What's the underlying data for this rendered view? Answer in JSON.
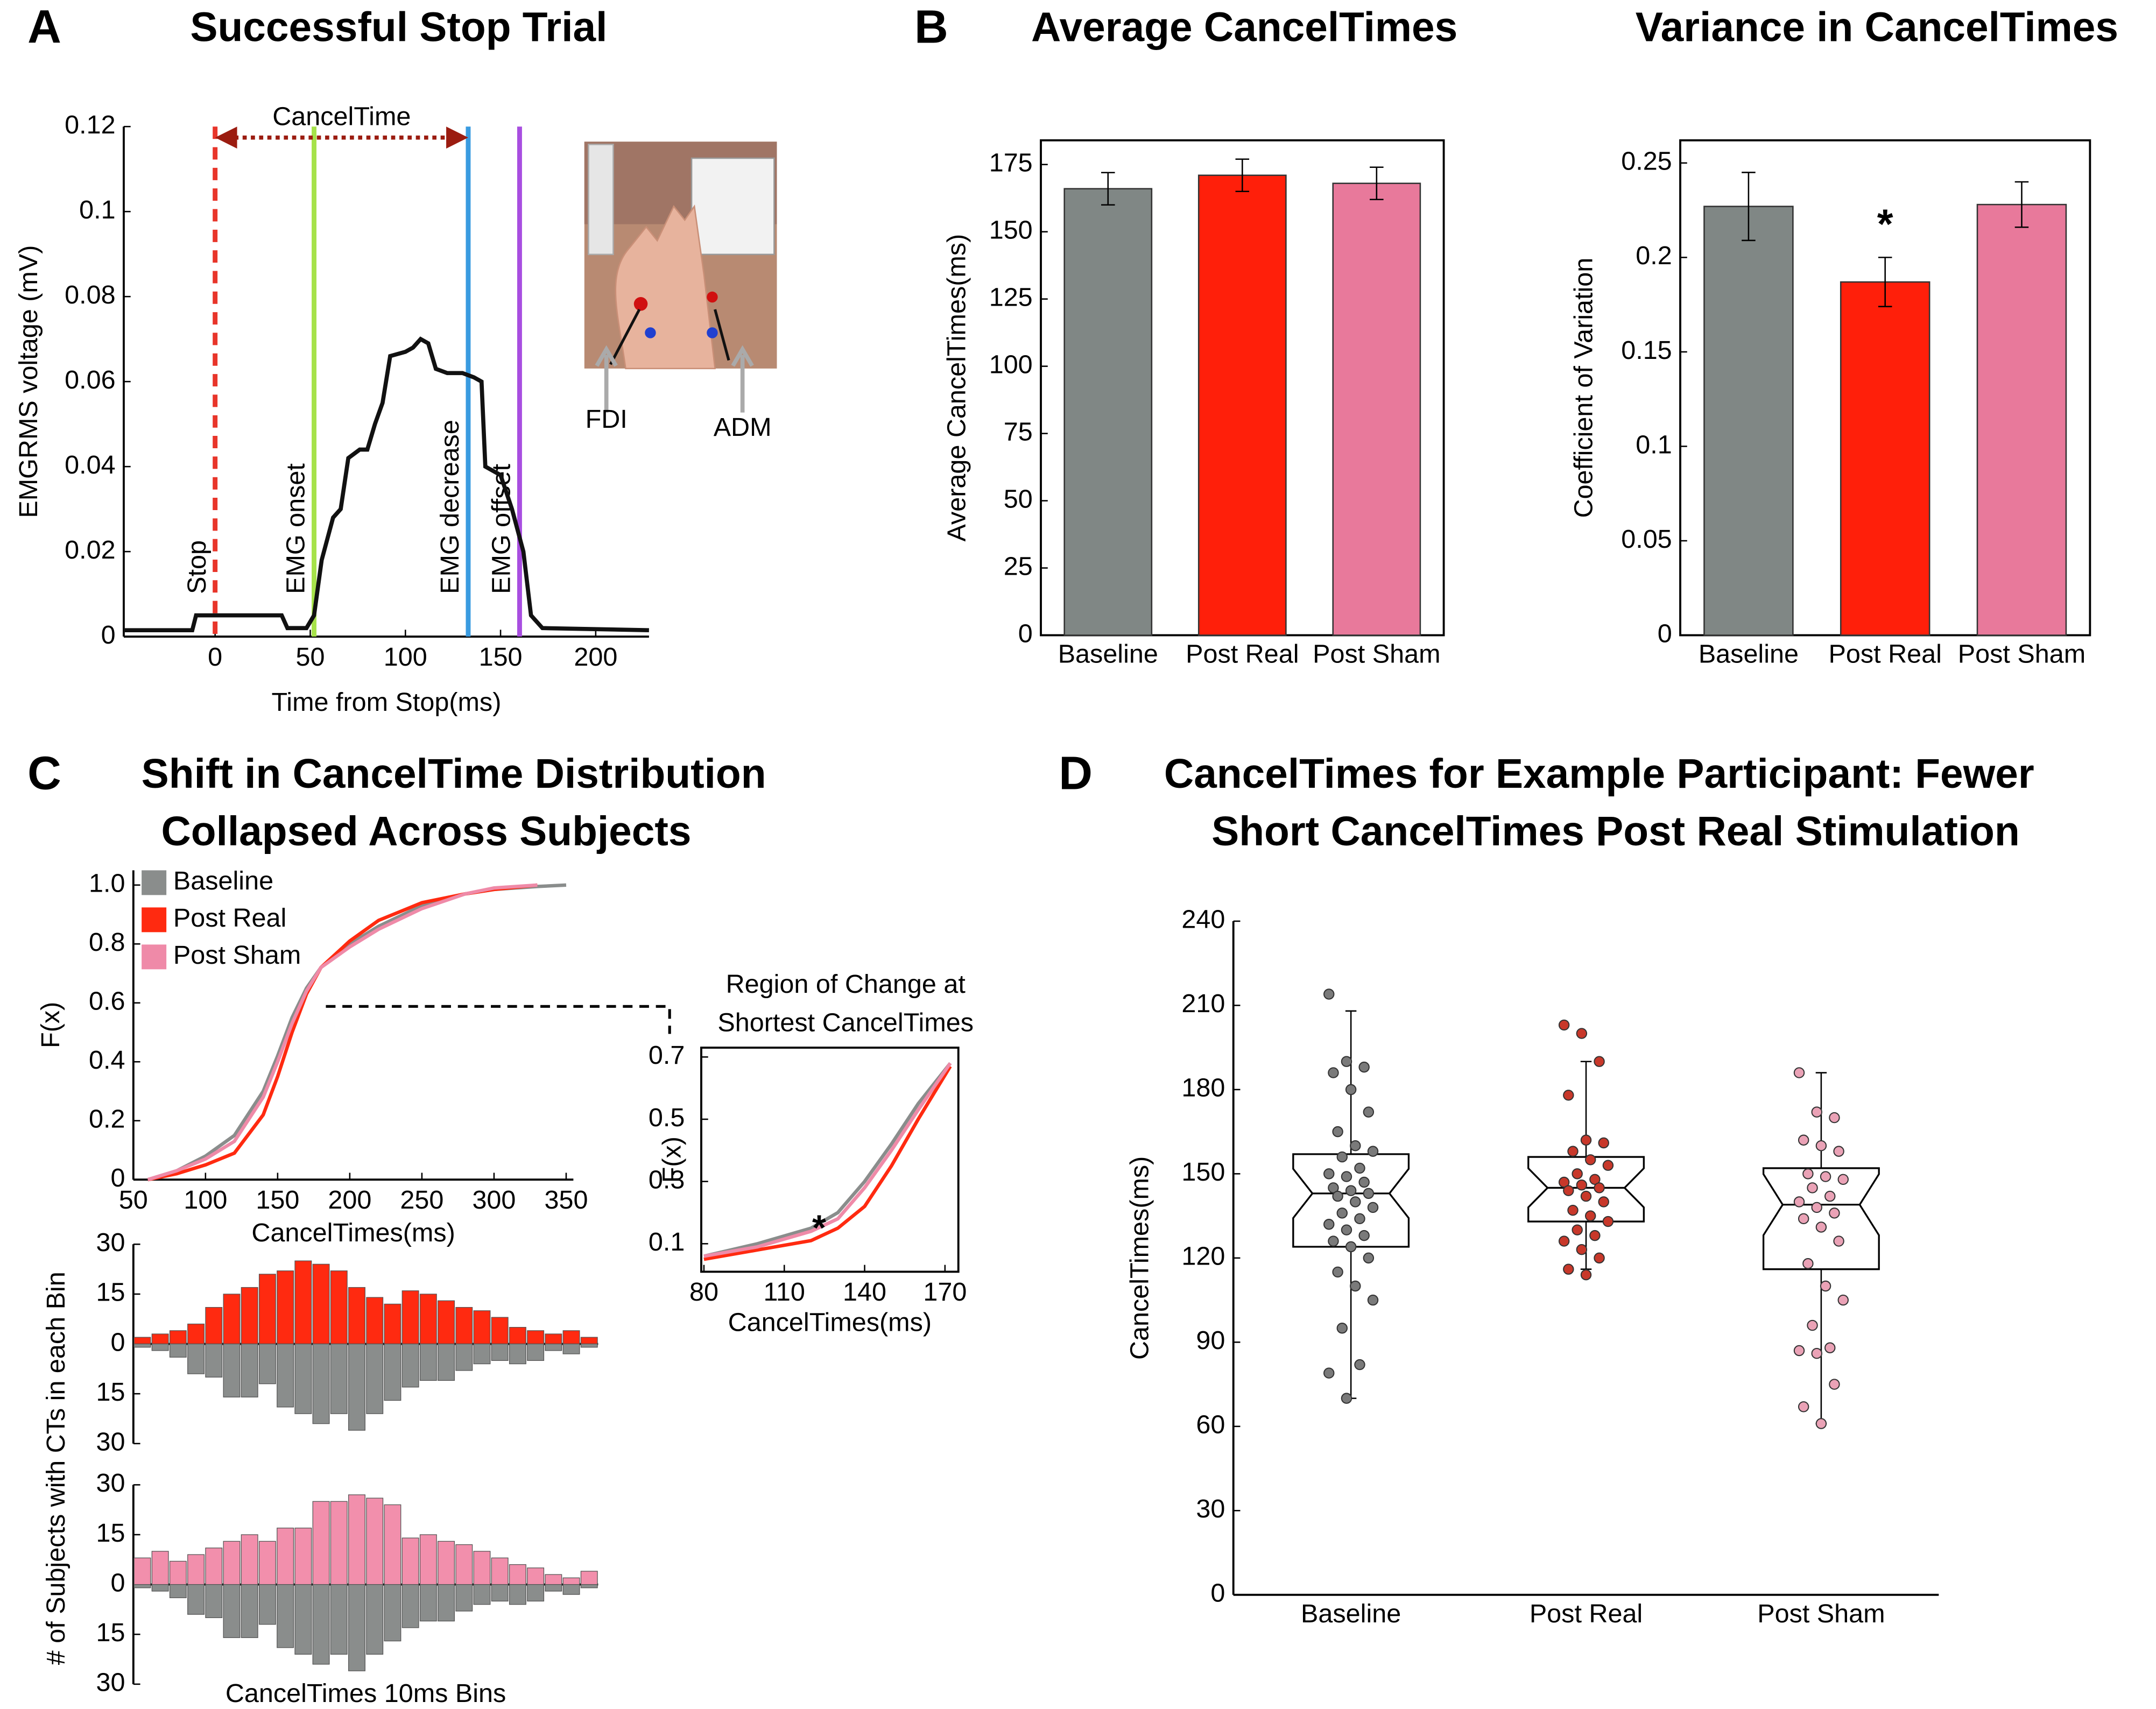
{
  "chart_data": [
    {
      "type": "line",
      "panel": "A",
      "title": "Successful Stop Trial",
      "xlabel": "Time from Stop(ms)",
      "ylabel": "EMGRMS voltage (mV)",
      "x": [
        -48,
        -12,
        -10,
        35,
        38,
        48,
        52,
        56,
        62,
        66,
        70,
        76,
        80,
        84,
        88,
        92,
        100,
        104,
        108,
        112,
        116,
        122,
        130,
        136,
        140,
        142,
        150,
        156,
        162,
        166,
        172,
        228
      ],
      "series": [
        {
          "color": "#111111",
          "values": [
            0.0015,
            0.0015,
            0.005,
            0.005,
            0.002,
            0.002,
            0.005,
            0.018,
            0.028,
            0.03,
            0.042,
            0.044,
            0.044,
            0.05,
            0.055,
            0.066,
            0.067,
            0.068,
            0.07,
            0.069,
            0.063,
            0.062,
            0.062,
            0.061,
            0.06,
            0.04,
            0.038,
            0.03,
            0.02,
            0.005,
            0.002,
            0.0015
          ]
        }
      ],
      "xlim": [
        -48,
        228
      ],
      "xticks": [
        0,
        50,
        100,
        150,
        200
      ],
      "ylim": [
        0,
        0.12
      ],
      "yticks": [
        0,
        0.02,
        0.04,
        0.06,
        0.08,
        0.1,
        0.12
      ],
      "markers": [
        {
          "label": "Stop",
          "x": 0,
          "color": "#e8352a",
          "dashed": true
        },
        {
          "label": "EMG onset",
          "x": 52,
          "color": "#a6e24a"
        },
        {
          "label": "EMG decrease",
          "x": 133,
          "color": "#3a9be0"
        },
        {
          "label": "EMG offset",
          "x": 160,
          "color": "#a84ee0"
        }
      ],
      "span": {
        "label": "CancelTime",
        "from": 0,
        "to": 133,
        "color": "#9b1c10"
      },
      "inset_labels": [
        "FDI",
        "ADM"
      ]
    },
    {
      "type": "bar",
      "panel": "B",
      "title": "Average CancelTimes",
      "ylabel": "Average CancelTimes(ms)",
      "categories": [
        "Baseline",
        "Post Real",
        "Post Sham"
      ],
      "values": [
        166,
        171,
        168
      ],
      "errors": [
        6,
        6,
        6
      ],
      "colors": [
        "#808785",
        "#ff1f0a",
        "#e8799b"
      ],
      "ylim": [
        0,
        184
      ],
      "yticks": [
        0,
        25,
        50,
        75,
        100,
        125,
        150,
        175
      ]
    },
    {
      "type": "bar",
      "title": "Variance in CancelTimes",
      "ylabel": "Coefficient of Variation",
      "categories": [
        "Baseline",
        "Post Real",
        "Post Sham"
      ],
      "values": [
        0.227,
        0.187,
        0.228
      ],
      "errors": [
        0.018,
        0.013,
        0.012
      ],
      "colors": [
        "#808785",
        "#ff1f0a",
        "#e8799b"
      ],
      "ylim": [
        0,
        0.262
      ],
      "yticks": [
        0,
        0.05,
        0.1,
        0.15,
        0.2,
        0.25
      ],
      "annotations": [
        {
          "text": "*",
          "category": "Post Real"
        }
      ]
    },
    {
      "type": "line",
      "panel": "C",
      "title": [
        "Shift in CancelTime Distribution",
        "Collapsed Across Subjects"
      ],
      "xlabel": "CancelTimes(ms)",
      "ylabel": "F(x)",
      "x": [
        60,
        80,
        100,
        120,
        140,
        150,
        160,
        170,
        180,
        200,
        220,
        250,
        280,
        300,
        330,
        350
      ],
      "series": [
        {
          "name": "Baseline",
          "color": "#8a8d8c",
          "values": [
            0,
            0.03,
            0.08,
            0.15,
            0.3,
            0.42,
            0.55,
            0.65,
            0.72,
            0.8,
            0.86,
            0.93,
            0.97,
            0.985,
            0.995,
            1.0
          ]
        },
        {
          "name": "Post Real",
          "color": "#ff2a10",
          "values": [
            0,
            0.02,
            0.05,
            0.09,
            0.22,
            0.35,
            0.5,
            0.63,
            0.72,
            0.81,
            0.88,
            0.94,
            0.97,
            0.985,
            1.0,
            null
          ]
        },
        {
          "name": "Post Sham",
          "color": "#ef8aa8",
          "values": [
            0,
            0.03,
            0.07,
            0.13,
            0.28,
            0.4,
            0.53,
            0.64,
            0.72,
            0.79,
            0.85,
            0.92,
            0.97,
            0.99,
            1.0,
            null
          ]
        }
      ],
      "xlim": [
        50,
        355
      ],
      "xticks": [
        50,
        100,
        150,
        200,
        250,
        300,
        350
      ],
      "ylim": [
        0,
        1.05
      ],
      "yticks": [
        0,
        0.2,
        0.4,
        0.6,
        0.8,
        {
          "value": 1,
          "label": "1.0"
        }
      ],
      "legend": "upper left"
    },
    {
      "type": "line",
      "title": [
        "Region of Change at",
        "Shortest CancelTimes"
      ],
      "xlabel": "CancelTimes(ms)",
      "ylabel": "F(x)",
      "x": [
        80,
        100,
        120,
        130,
        140,
        150,
        160,
        172
      ],
      "series": [
        {
          "color": "#8a8d8c",
          "values": [
            0.06,
            0.1,
            0.15,
            0.2,
            0.3,
            0.42,
            0.55,
            0.68
          ]
        },
        {
          "color": "#ff2a10",
          "values": [
            0.05,
            0.08,
            0.11,
            0.15,
            0.22,
            0.35,
            0.5,
            0.67
          ]
        },
        {
          "color": "#ef8aa8",
          "values": [
            0.06,
            0.09,
            0.14,
            0.18,
            0.28,
            0.4,
            0.53,
            0.68
          ]
        }
      ],
      "xlim": [
        79,
        175
      ],
      "xticks": [
        80,
        110,
        140,
        170
      ],
      "ylim": [
        0.01,
        0.73
      ],
      "yticks": [
        0.1,
        0.3,
        0.5,
        0.7
      ],
      "annotation": "*"
    },
    {
      "type": "histogram",
      "ylabel": "# of Subjects with CTs in each Bin",
      "bins": [
        60,
        70,
        80,
        90,
        100,
        110,
        120,
        130,
        140,
        150,
        160,
        170,
        180,
        190,
        200,
        210,
        220,
        230,
        240,
        250,
        260,
        270,
        280,
        290,
        300,
        310,
        320
      ],
      "series": [
        {
          "color": "#ff2a10",
          "direction": "up",
          "values": [
            2,
            3,
            4,
            6,
            11,
            15,
            17,
            21,
            22,
            25,
            24,
            22,
            17,
            14,
            12,
            16,
            15,
            13,
            11,
            10,
            8,
            5,
            4,
            3,
            4,
            2
          ]
        },
        {
          "color": "#8a8d8c",
          "direction": "down",
          "values": [
            1,
            2,
            4,
            9,
            10,
            16,
            16,
            12,
            19,
            21,
            24,
            21,
            26,
            21,
            17,
            13,
            11,
            11,
            8,
            6,
            5,
            6,
            5,
            2,
            3,
            1
          ]
        }
      ],
      "ylim": [
        -30,
        30
      ],
      "yticks": [
        {
          "value": 30,
          "label": "30"
        },
        {
          "value": 15,
          "label": "15"
        },
        0,
        {
          "value": -15,
          "label": "15"
        },
        {
          "value": -30,
          "label": "30"
        }
      ]
    },
    {
      "type": "histogram",
      "xlabel": "CancelTimes 10ms Bins",
      "bins": [
        60,
        70,
        80,
        90,
        100,
        110,
        120,
        130,
        140,
        150,
        160,
        170,
        180,
        190,
        200,
        210,
        220,
        230,
        240,
        250,
        260,
        270,
        280,
        290,
        300,
        310,
        320
      ],
      "series": [
        {
          "color": "#f28fac",
          "direction": "up",
          "values": [
            8,
            10,
            7,
            9,
            11,
            13,
            15,
            13,
            17,
            17,
            25,
            25,
            27,
            26,
            24,
            14,
            15,
            13,
            12,
            10,
            8,
            6,
            5,
            3,
            2,
            4
          ]
        },
        {
          "color": "#8a8d8c",
          "direction": "down",
          "values": [
            1,
            2,
            4,
            9,
            10,
            16,
            16,
            12,
            19,
            21,
            24,
            21,
            26,
            21,
            17,
            13,
            11,
            11,
            8,
            6,
            5,
            6,
            5,
            2,
            3,
            1
          ]
        }
      ],
      "ylim": [
        -30,
        30
      ],
      "yticks": [
        {
          "value": 30,
          "label": "30"
        },
        {
          "value": 15,
          "label": "15"
        },
        0,
        {
          "value": -15,
          "label": "15"
        },
        {
          "value": -30,
          "label": "30"
        }
      ]
    },
    {
      "type": "box",
      "panel": "D",
      "title": [
        "CancelTimes for Example Participant: Fewer",
        "Short CancelTimes Post Real Stimulation"
      ],
      "ylabel": "CancelTimes(ms)",
      "categories": [
        "Baseline",
        "Post Real",
        "Post Sham"
      ],
      "stats": [
        {
          "whislo": 70,
          "q1": 124,
          "median": 143,
          "q3": 157,
          "whishi": 208
        },
        {
          "whislo": 116,
          "q1": 133,
          "median": 145,
          "q3": 156,
          "whishi": 190
        },
        {
          "whislo": 61,
          "q1": 116,
          "median": 139,
          "q3": 152,
          "whishi": 186
        }
      ],
      "points": [
        [
          214,
          190,
          188,
          186,
          180,
          172,
          165,
          160,
          158,
          156,
          152,
          150,
          149,
          147,
          145,
          144,
          143,
          142,
          140,
          138,
          136,
          134,
          132,
          130,
          128,
          126,
          124,
          120,
          115,
          110,
          105,
          95,
          82,
          79,
          70
        ],
        [
          203,
          200,
          190,
          178,
          162,
          161,
          158,
          155,
          153,
          150,
          148,
          147,
          146,
          145,
          144,
          142,
          140,
          137,
          135,
          133,
          130,
          128,
          126,
          123,
          120,
          116,
          114
        ],
        [
          186,
          172,
          170,
          162,
          160,
          158,
          150,
          149,
          148,
          145,
          142,
          140,
          138,
          136,
          134,
          131,
          126,
          118,
          110,
          105,
          96,
          88,
          87,
          86,
          75,
          67,
          61
        ]
      ],
      "colors": [
        "#7a7a7a",
        "#c8382a",
        "#eaa2b6"
      ],
      "ylim": [
        0,
        240
      ],
      "yticks": [
        0,
        30,
        60,
        90,
        120,
        150,
        180,
        210,
        240
      ]
    }
  ]
}
